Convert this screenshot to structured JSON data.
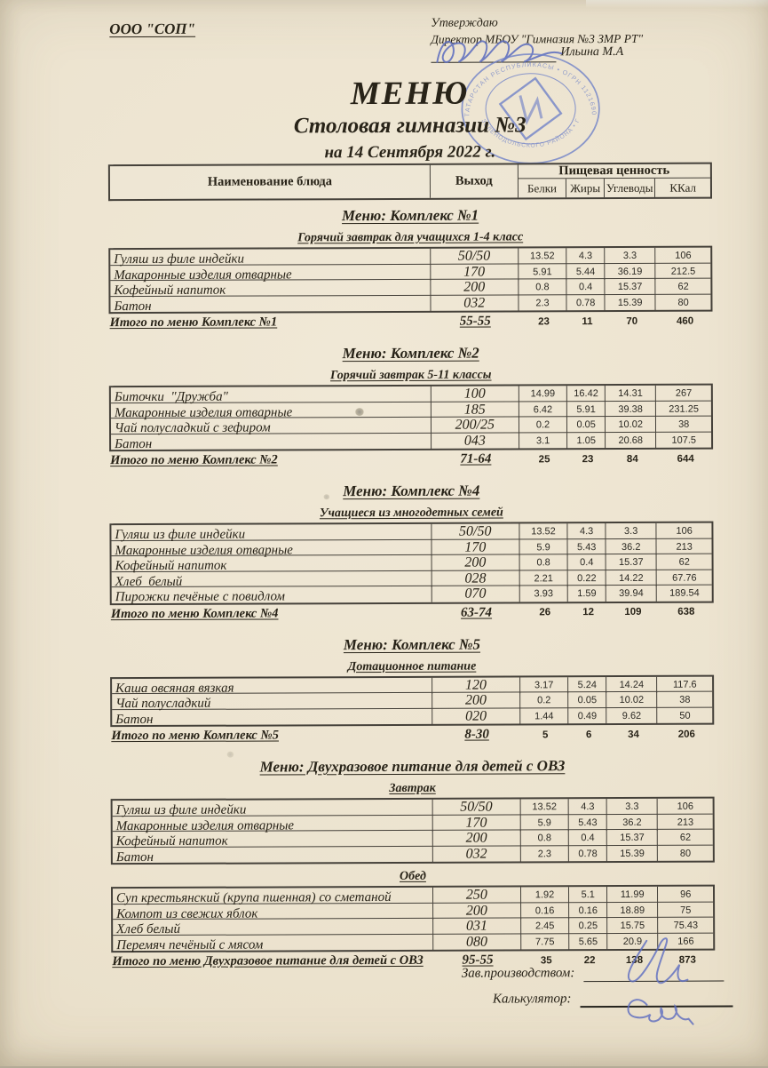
{
  "page": {
    "org": "ООО \"СОП\"",
    "approve_line1": "Утверждаю",
    "approve_line2": "Директор МБОУ \"Гимназия №3 ЗМР РТ\"",
    "approver": "Ильина М.А",
    "title": "МЕНЮ",
    "subtitle": "Столовая гимназии №3",
    "date_line": "на 14 Сентября 2022 г."
  },
  "table_header": {
    "dish": "Наименование блюда",
    "output": "Выход",
    "nutrition_group": "Пищевая ценность",
    "columns": [
      "Белки",
      "Жиры",
      "Углеводы",
      "ККал"
    ]
  },
  "sections": [
    {
      "title": "Меню: Комплекс №1",
      "groups": [
        {
          "subtitle": "Горячий завтрак для учащихся 1-4 класс",
          "rows": [
            [
              "Гуляш из филе индейки",
              "50/50",
              "13.52",
              "4.3",
              "3.3",
              "106"
            ],
            [
              "Макаронные изделия отварные",
              "170",
              "5.91",
              "5.44",
              "36.19",
              "212.5"
            ],
            [
              "Кофейный напиток",
              "200",
              "0.8",
              "0.4",
              "15.37",
              "62"
            ],
            [
              "Батон",
              "032",
              "2.3",
              "0.78",
              "15.39",
              "80"
            ]
          ]
        }
      ],
      "total": [
        "Итого по меню Комплекс №1",
        "55-55",
        "23",
        "11",
        "70",
        "460"
      ]
    },
    {
      "title": "Меню: Комплекс №2",
      "groups": [
        {
          "subtitle": "Горячий завтрак 5-11 классы",
          "rows": [
            [
              "Биточки  \"Дружба\"",
              "100",
              "14.99",
              "16.42",
              "14.31",
              "267"
            ],
            [
              "Макаронные изделия отварные",
              "185",
              "6.42",
              "5.91",
              "39.38",
              "231.25"
            ],
            [
              "Чай полусладкий с зефиром",
              "200/25",
              "0.2",
              "0.05",
              "10.02",
              "38"
            ],
            [
              "Батон",
              "043",
              "3.1",
              "1.05",
              "20.68",
              "107.5"
            ]
          ]
        }
      ],
      "total": [
        "Итого по меню Комплекс №2",
        "71-64",
        "25",
        "23",
        "84",
        "644"
      ]
    },
    {
      "title": "Меню: Комплекс №4",
      "groups": [
        {
          "subtitle": "Учащиеся из многодетных семей",
          "rows": [
            [
              "Гуляш из филе индейки",
              "50/50",
              "13.52",
              "4.3",
              "3.3",
              "106"
            ],
            [
              "Макаронные изделия отварные",
              "170",
              "5.9",
              "5.43",
              "36.2",
              "213"
            ],
            [
              "Кофейный напиток",
              "200",
              "0.8",
              "0.4",
              "15.37",
              "62"
            ],
            [
              "Хлеб  белый",
              "028",
              "2.21",
              "0.22",
              "14.22",
              "67.76"
            ],
            [
              "Пирожки печёные с повидлом",
              "070",
              "3.93",
              "1.59",
              "39.94",
              "189.54"
            ]
          ]
        }
      ],
      "total": [
        "Итого по меню Комплекс №4",
        "63-74",
        "26",
        "12",
        "109",
        "638"
      ]
    },
    {
      "title": "Меню: Комплекс №5",
      "groups": [
        {
          "subtitle": "Дотационное питание",
          "rows": [
            [
              "Каша овсяная вязкая",
              "120",
              "3.17",
              "5.24",
              "14.24",
              "117.6"
            ],
            [
              "Чай полусладкий",
              "200",
              "0.2",
              "0.05",
              "10.02",
              "38"
            ],
            [
              "Батон",
              "020",
              "1.44",
              "0.49",
              "9.62",
              "50"
            ]
          ]
        }
      ],
      "total": [
        "Итого по меню Комплекс №5",
        "8-30",
        "5",
        "6",
        "34",
        "206"
      ]
    },
    {
      "title": "Меню: Двухразовое питание для детей с ОВЗ",
      "groups": [
        {
          "subtitle": "Завтрак",
          "rows": [
            [
              "Гуляш из филе индейки",
              "50/50",
              "13.52",
              "4.3",
              "3.3",
              "106"
            ],
            [
              "Макаронные изделия отварные",
              "170",
              "5.9",
              "5.43",
              "36.2",
              "213"
            ],
            [
              "Кофейный напиток",
              "200",
              "0.8",
              "0.4",
              "15.37",
              "62"
            ],
            [
              "Батон",
              "032",
              "2.3",
              "0.78",
              "15.39",
              "80"
            ]
          ]
        },
        {
          "subtitle": "Обед",
          "rows": [
            [
              "Суп крестьянский (крупа пшенная) со сметаной",
              "250",
              "1.92",
              "5.1",
              "11.99",
              "96"
            ],
            [
              "Компот из свежих яблок",
              "200",
              "0.16",
              "0.16",
              "18.89",
              "75"
            ],
            [
              "Хлеб белый",
              "031",
              "2.45",
              "0.25",
              "15.75",
              "75.43"
            ],
            [
              "Перемяч печёный с мясом",
              "080",
              "7.75",
              "5.65",
              "20.9",
              "166"
            ]
          ]
        }
      ],
      "total": [
        "Итого по меню Двухразовое питание для детей с ОВЗ",
        "95-55",
        "35",
        "22",
        "138",
        "873"
      ]
    }
  ],
  "footer": {
    "production_label": "Зав.производством:",
    "calculator_label": "Калькулятор:"
  },
  "stamp": {
    "ring_top": "ТАТАРСТАН РЕСПУБЛИКАСЫ • ОГРН 1121690755757 • МУНИЦИПАЛЬНОГО",
    "ring_bottom": "ЗЕЛЕНОДОЛЬСКОГО РАЙОНА • ГИМНАЗИЯ"
  },
  "colors": {
    "paper": "#ece3cf",
    "ink": "#282318",
    "line": "#45413a",
    "stamp-blue": "#6e80c8",
    "pen-blue": "#5b6cc0"
  }
}
